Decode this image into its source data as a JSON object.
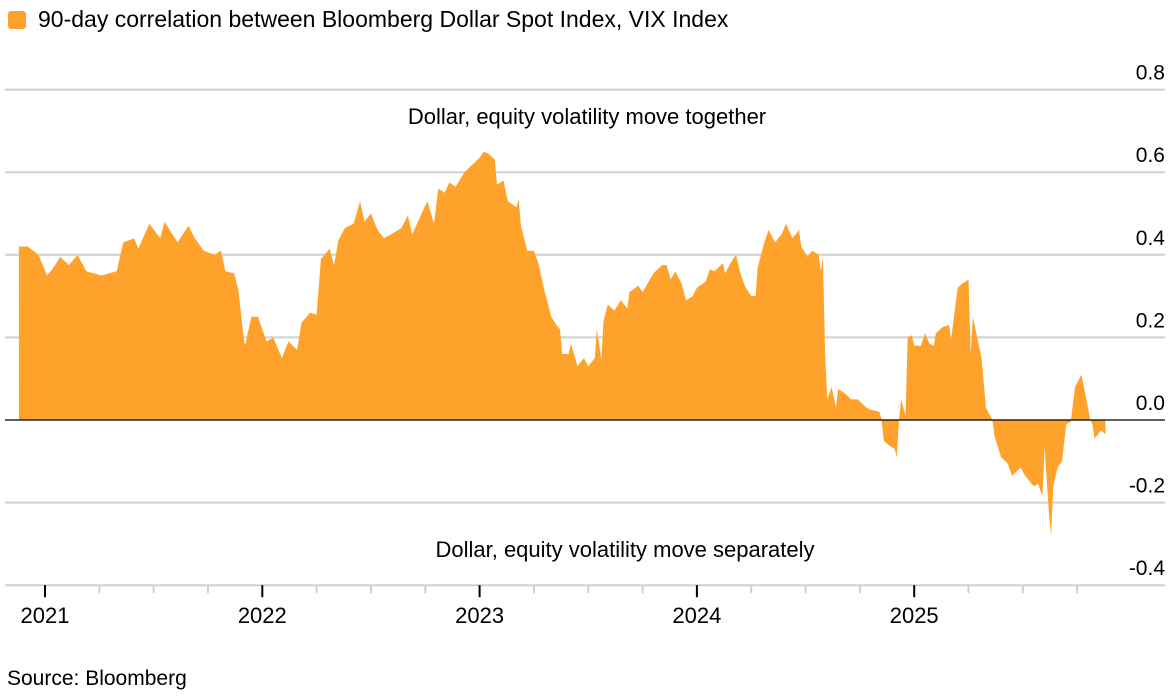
{
  "chart_data": {
    "type": "area",
    "legend_position": "top-left",
    "grid": true,
    "x_tick_labels": [
      "2021",
      "2022",
      "2023",
      "2024",
      "2025"
    ],
    "y_tick_labels": [
      "0.8",
      "0.6",
      "0.4",
      "0.2",
      "0.0",
      "-0.2",
      "-0.4"
    ],
    "ylim": [
      -0.4,
      0.8
    ],
    "y_axis_side": "right",
    "series": [
      {
        "name": "90-day correlation between Bloomberg Dollar Spot Index, VIX Index",
        "color": "#FFA22B",
        "x": [
          2020.88,
          2020.92,
          2020.97,
          2021.01,
          2021.04,
          2021.07,
          2021.11,
          2021.15,
          2021.19,
          2021.26,
          2021.33,
          2021.36,
          2021.41,
          2021.43,
          2021.48,
          2021.53,
          2021.55,
          2021.61,
          2021.66,
          2021.69,
          2021.73,
          2021.78,
          2021.81,
          2021.83,
          2021.87,
          2021.89,
          2021.91,
          2021.92,
          2021.95,
          2021.98,
          2022.02,
          2022.05,
          2022.09,
          2022.12,
          2022.16,
          2022.18,
          2022.22,
          2022.25,
          2022.27,
          2022.31,
          2022.33,
          2022.35,
          2022.38,
          2022.42,
          2022.45,
          2022.47,
          2022.5,
          2022.53,
          2022.56,
          2022.61,
          2022.64,
          2022.67,
          2022.69,
          2022.72,
          2022.76,
          2022.79,
          2022.81,
          2022.84,
          2022.86,
          2022.89,
          2022.93,
          2022.96,
          2023.0,
          2023.02,
          2023.04,
          2023.07,
          2023.08,
          2023.11,
          2023.13,
          2023.17,
          2023.18,
          2023.19,
          2023.22,
          2023.25,
          2023.27,
          2023.3,
          2023.33,
          2023.36,
          2023.37,
          2023.38,
          2023.41,
          2023.42,
          2023.44,
          2023.45,
          2023.48,
          2023.5,
          2023.53,
          2023.54,
          2023.56,
          2023.57,
          2023.59,
          2023.62,
          2023.65,
          2023.68,
          2023.69,
          2023.73,
          2023.75,
          2023.8,
          2023.84,
          2023.86,
          2023.88,
          2023.9,
          2023.93,
          2023.95,
          2023.98,
          2024.0,
          2024.04,
          2024.06,
          2024.08,
          2024.12,
          2024.13,
          2024.16,
          2024.18,
          2024.2,
          2024.22,
          2024.25,
          2024.27,
          2024.28,
          2024.31,
          2024.33,
          2024.36,
          2024.39,
          2024.41,
          2024.44,
          2024.47,
          2024.48,
          2024.51,
          2024.53,
          2024.56,
          2024.57,
          2024.58,
          2024.59,
          2024.6,
          2024.62,
          2024.64,
          2024.65,
          2024.68,
          2024.71,
          2024.74,
          2024.78,
          2024.8,
          2024.84,
          2024.85,
          2024.86,
          2024.88,
          2024.91,
          2024.92,
          2024.93,
          2024.94,
          2024.96,
          2024.97,
          2024.99,
          2025.0,
          2025.03,
          2025.05,
          2025.07,
          2025.09,
          2025.1,
          2025.13,
          2025.16,
          2025.17,
          2025.2,
          2025.22,
          2025.25,
          2025.26,
          2025.27,
          2025.29,
          2025.31,
          2025.33,
          2025.36,
          2025.37,
          2025.4,
          2025.43,
          2025.45,
          2025.49,
          2025.51,
          2025.55,
          2025.57,
          2025.59,
          2025.6,
          2025.62,
          2025.63,
          2025.64,
          2025.66,
          2025.68,
          2025.7,
          2025.72,
          2025.74,
          2025.77,
          2025.8,
          2025.81,
          2025.82,
          2025.83,
          2025.86,
          2025.88
        ],
        "y": [
          0.42,
          0.42,
          0.4,
          0.35,
          0.37,
          0.395,
          0.375,
          0.4,
          0.36,
          0.35,
          0.36,
          0.43,
          0.44,
          0.415,
          0.475,
          0.44,
          0.48,
          0.43,
          0.47,
          0.44,
          0.41,
          0.4,
          0.41,
          0.36,
          0.355,
          0.315,
          0.22,
          0.18,
          0.25,
          0.25,
          0.19,
          0.2,
          0.15,
          0.19,
          0.17,
          0.235,
          0.26,
          0.255,
          0.39,
          0.415,
          0.375,
          0.435,
          0.465,
          0.475,
          0.53,
          0.48,
          0.5,
          0.46,
          0.44,
          0.455,
          0.465,
          0.495,
          0.45,
          0.485,
          0.53,
          0.475,
          0.56,
          0.55,
          0.575,
          0.565,
          0.6,
          0.615,
          0.635,
          0.65,
          0.645,
          0.63,
          0.57,
          0.58,
          0.53,
          0.515,
          0.535,
          0.47,
          0.41,
          0.41,
          0.38,
          0.31,
          0.25,
          0.225,
          0.22,
          0.16,
          0.16,
          0.185,
          0.15,
          0.13,
          0.15,
          0.13,
          0.15,
          0.22,
          0.145,
          0.24,
          0.28,
          0.265,
          0.29,
          0.27,
          0.31,
          0.325,
          0.31,
          0.355,
          0.375,
          0.375,
          0.34,
          0.36,
          0.33,
          0.29,
          0.3,
          0.32,
          0.335,
          0.365,
          0.36,
          0.38,
          0.355,
          0.385,
          0.4,
          0.355,
          0.325,
          0.3,
          0.3,
          0.37,
          0.43,
          0.46,
          0.43,
          0.45,
          0.475,
          0.44,
          0.46,
          0.42,
          0.395,
          0.41,
          0.4,
          0.36,
          0.395,
          0.16,
          0.05,
          0.08,
          0.03,
          0.075,
          0.065,
          0.05,
          0.05,
          0.03,
          0.025,
          0.02,
          0.0,
          -0.05,
          -0.06,
          -0.07,
          -0.09,
          0.0,
          0.05,
          0.01,
          0.2,
          0.205,
          0.18,
          0.18,
          0.21,
          0.185,
          0.18,
          0.21,
          0.225,
          0.23,
          0.195,
          0.32,
          0.33,
          0.34,
          0.16,
          0.25,
          0.2,
          0.15,
          0.03,
          0.0,
          -0.04,
          -0.09,
          -0.105,
          -0.135,
          -0.115,
          -0.135,
          -0.16,
          -0.155,
          -0.185,
          -0.065,
          -0.225,
          -0.28,
          -0.16,
          -0.115,
          -0.1,
          -0.01,
          -0.005,
          0.08,
          0.11,
          0.03,
          0.0,
          -0.01,
          -0.045,
          -0.025,
          -0.035
        ]
      }
    ],
    "annotations": [
      "Dollar, equity volatility move together",
      "Dollar, equity volatility move separately"
    ],
    "source": "Source: Bloomberg"
  }
}
